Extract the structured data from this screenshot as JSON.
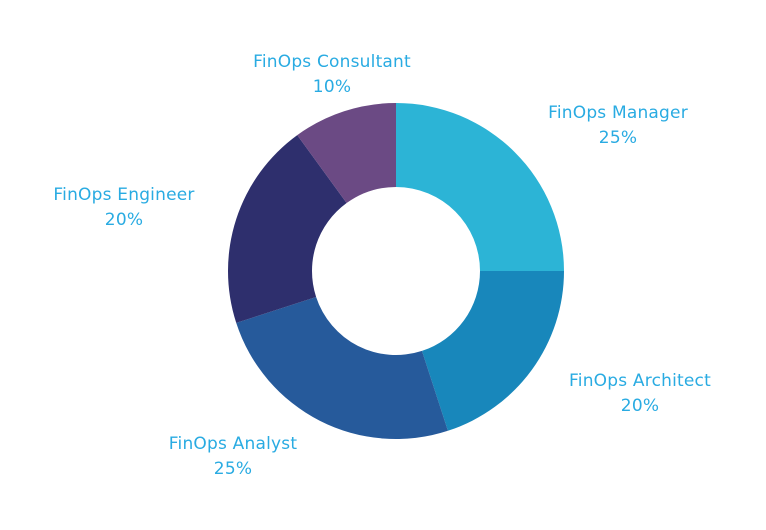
{
  "chart_data": {
    "type": "pie",
    "variant": "donut",
    "title": "",
    "label_color": "#29abe2",
    "slices": [
      {
        "name": "FinOps Manager",
        "value": 25,
        "value_label": "25%",
        "color": "#2cb4d6"
      },
      {
        "name": "FinOps Architect",
        "value": 20,
        "value_label": "20%",
        "color": "#1887bb"
      },
      {
        "name": "FinOps Analyst",
        "value": 25,
        "value_label": "25%",
        "color": "#265a9b"
      },
      {
        "name": "FinOps Engineer",
        "value": 20,
        "value_label": "20%",
        "color": "#2e2f6d"
      },
      {
        "name": "FinOps Consultant",
        "value": 10,
        "value_label": "10%",
        "color": "#6b4a84"
      }
    ]
  }
}
